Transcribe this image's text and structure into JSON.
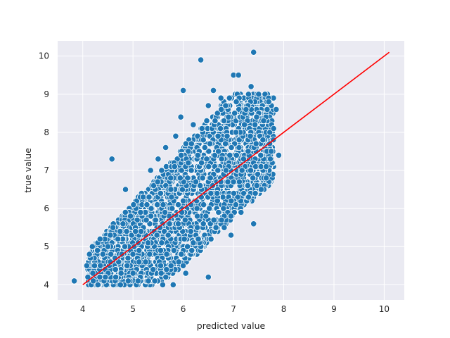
{
  "chart_data": {
    "type": "scatter",
    "title": "",
    "xlabel": "predicted value",
    "ylabel": "true value",
    "xlim": [
      3.5,
      10.4
    ],
    "ylim": [
      3.6,
      10.4
    ],
    "x_ticks": [
      "4",
      "5",
      "6",
      "7",
      "8",
      "9",
      "10"
    ],
    "y_ticks": [
      "4",
      "5",
      "6",
      "7",
      "8",
      "9",
      "10"
    ],
    "grid": true,
    "background": "#eaeaf2",
    "point_color": "#1f77b4",
    "line_color": "#ff0000",
    "reference_line": {
      "x": [
        4.0,
        10.1
      ],
      "y": [
        4.0,
        10.1
      ]
    },
    "series": [
      {
        "points": [
          [
            3.83,
            4.1
          ],
          [
            4.08,
            4.5
          ],
          [
            4.1,
            4.2
          ],
          [
            4.2,
            4.3
          ],
          [
            4.3,
            4.0
          ],
          [
            4.35,
            4.5
          ],
          [
            4.4,
            4.8
          ],
          [
            4.45,
            4.2
          ],
          [
            4.5,
            5.0
          ],
          [
            4.55,
            4.6
          ],
          [
            4.6,
            5.5
          ],
          [
            4.58,
            7.3
          ],
          [
            4.65,
            4.4
          ],
          [
            4.7,
            5.2
          ],
          [
            4.75,
            4.0
          ],
          [
            4.8,
            5.6
          ],
          [
            4.85,
            6.5
          ],
          [
            4.9,
            4.7
          ],
          [
            4.95,
            5.8
          ],
          [
            5.0,
            4.3
          ],
          [
            5.05,
            5.4
          ],
          [
            5.1,
            4.1
          ],
          [
            5.15,
            5.9
          ],
          [
            5.2,
            6.3
          ],
          [
            5.25,
            4.6
          ],
          [
            5.3,
            5.1
          ],
          [
            5.35,
            7.0
          ],
          [
            5.4,
            4.4
          ],
          [
            5.45,
            5.7
          ],
          [
            5.5,
            7.3
          ],
          [
            5.55,
            4.9
          ],
          [
            5.6,
            6.1
          ],
          [
            5.65,
            7.6
          ],
          [
            5.7,
            5.3
          ],
          [
            5.75,
            6.8
          ],
          [
            5.8,
            4.0
          ],
          [
            5.85,
            7.9
          ],
          [
            5.9,
            5.6
          ],
          [
            5.95,
            8.4
          ],
          [
            6.0,
            6.2
          ],
          [
            6.0,
            9.1
          ],
          [
            6.05,
            4.3
          ],
          [
            6.1,
            7.2
          ],
          [
            6.15,
            5.4
          ],
          [
            6.2,
            8.2
          ],
          [
            6.25,
            6.7
          ],
          [
            6.3,
            5.2
          ],
          [
            6.35,
            9.9
          ],
          [
            6.4,
            7.8
          ],
          [
            6.45,
            5.8
          ],
          [
            6.5,
            4.2
          ],
          [
            6.5,
            8.7
          ],
          [
            6.55,
            6.4
          ],
          [
            6.6,
            9.1
          ],
          [
            6.65,
            5.5
          ],
          [
            6.7,
            7.5
          ],
          [
            6.75,
            8.9
          ],
          [
            6.8,
            6.0
          ],
          [
            6.85,
            7.0
          ],
          [
            6.9,
            8.4
          ],
          [
            6.95,
            5.3
          ],
          [
            7.0,
            9.5
          ],
          [
            7.0,
            6.7
          ],
          [
            7.05,
            8.0
          ],
          [
            7.1,
            9.5
          ],
          [
            7.15,
            5.9
          ],
          [
            7.2,
            7.3
          ],
          [
            7.25,
            8.6
          ],
          [
            7.3,
            6.3
          ],
          [
            7.35,
            9.2
          ],
          [
            7.4,
            10.1
          ],
          [
            7.4,
            5.6
          ],
          [
            7.45,
            7.7
          ],
          [
            7.5,
            9.0
          ],
          [
            7.55,
            6.5
          ],
          [
            7.6,
            8.3
          ],
          [
            7.65,
            7.1
          ],
          [
            7.7,
            8.8
          ],
          [
            7.75,
            7.5
          ],
          [
            7.8,
            8.1
          ],
          [
            7.85,
            8.6
          ],
          [
            7.9,
            7.4
          ]
        ]
      }
    ]
  }
}
